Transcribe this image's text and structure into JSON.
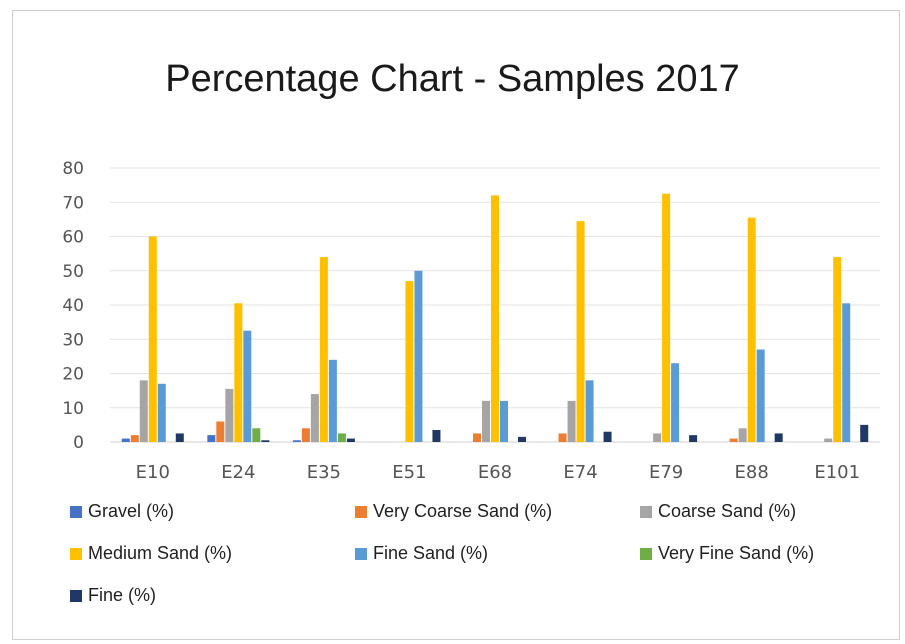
{
  "chart_data": {
    "type": "bar",
    "title": "Percentage Chart - Samples 2017",
    "categories": [
      "E10",
      "E24",
      "E35",
      "E51",
      "E68",
      "E74",
      "E79",
      "E88",
      "E101"
    ],
    "ylim": [
      0,
      80
    ],
    "yticks": [
      0,
      10,
      20,
      30,
      40,
      50,
      60,
      70,
      80
    ],
    "grid": true,
    "legend_position": "bottom",
    "series": [
      {
        "name": "Gravel (%)",
        "color": "#4472C4",
        "values": [
          1,
          2,
          0.5,
          0,
          0,
          0,
          0,
          0,
          0
        ]
      },
      {
        "name": "Very Coarse Sand (%)",
        "color": "#ED7D31",
        "values": [
          2,
          6,
          4,
          0,
          2.5,
          2.5,
          0,
          1,
          0
        ]
      },
      {
        "name": "Coarse Sand (%)",
        "color": "#A5A5A5",
        "values": [
          18,
          15.5,
          14,
          0,
          12,
          12,
          2.5,
          4,
          1
        ]
      },
      {
        "name": "Medium Sand (%)",
        "color": "#FFC000",
        "values": [
          60,
          40.5,
          54,
          47,
          72,
          64.5,
          72.5,
          65.5,
          54
        ]
      },
      {
        "name": "Fine Sand (%)",
        "color": "#5B9BD5",
        "values": [
          17,
          32.5,
          24,
          50,
          12,
          18,
          23,
          27,
          40.5
        ]
      },
      {
        "name": "Very Fine Sand (%)",
        "color": "#70AD47",
        "values": [
          0,
          4,
          2.5,
          0,
          0,
          0,
          0,
          0,
          0
        ]
      },
      {
        "name": "Fine (%)",
        "color": "#1F3864",
        "values": [
          2.5,
          0.5,
          1,
          3.5,
          1.5,
          3,
          2,
          2.5,
          5
        ]
      }
    ]
  }
}
